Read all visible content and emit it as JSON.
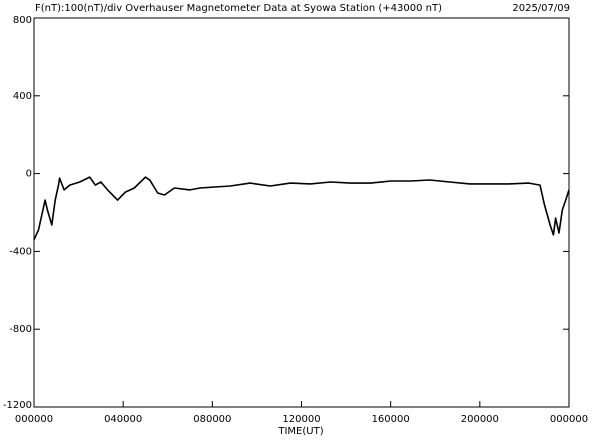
{
  "chart_data": {
    "type": "line",
    "title": "F(nT):100(nT)/div  Overhauser Magnetometer Data at Syowa Station (+43000 nT)",
    "date": "2025/07/09",
    "x_label": "TIME(UT)",
    "xlim": [
      0,
      24
    ],
    "xticks": [
      {
        "value": 0,
        "label": "000000"
      },
      {
        "value": 4,
        "label": "040000"
      },
      {
        "value": 8,
        "label": "080000"
      },
      {
        "value": 12,
        "label": "120000"
      },
      {
        "value": 16,
        "label": "160000"
      },
      {
        "value": 20,
        "label": "200000"
      },
      {
        "value": 24,
        "label": "000000"
      }
    ],
    "ylim": [
      -1200,
      800
    ],
    "yticks": [
      -1200,
      -800,
      -400,
      0,
      400,
      800
    ],
    "x": [
      0,
      0.2,
      0.35,
      0.5,
      0.6,
      0.8,
      0.95,
      1.1,
      1.15,
      1.35,
      1.6,
      2.05,
      2.5,
      2.75,
      3.0,
      3.3,
      3.75,
      4.1,
      4.5,
      5.0,
      5.2,
      5.55,
      5.85,
      6.3,
      7.0,
      7.45,
      8.1,
      8.8,
      9.7,
      10.6,
      11.5,
      12.4,
      13.3,
      14.2,
      15.1,
      16.0,
      16.9,
      17.75,
      18.65,
      19.55,
      20.45,
      21.3,
      22.2,
      22.7,
      22.9,
      23.15,
      23.3,
      23.4,
      23.55,
      23.7,
      23.85,
      24
    ],
    "series": [
      {
        "color": "#000000",
        "values": [
          -340,
          -290,
          -213,
          -136,
          -187,
          -264,
          -136,
          -59,
          -23,
          -84,
          -59,
          -43,
          -18,
          -59,
          -43,
          -84,
          -136,
          -95,
          -74,
          -18,
          -34,
          -100,
          -110,
          -74,
          -84,
          -74,
          -69,
          -64,
          -49,
          -64,
          -49,
          -53,
          -43,
          -49,
          -49,
          -38,
          -38,
          -33,
          -43,
          -53,
          -53,
          -53,
          -49,
          -59,
          -161,
          -264,
          -315,
          -229,
          -305,
          -187,
          -136,
          -84
        ]
      }
    ]
  }
}
